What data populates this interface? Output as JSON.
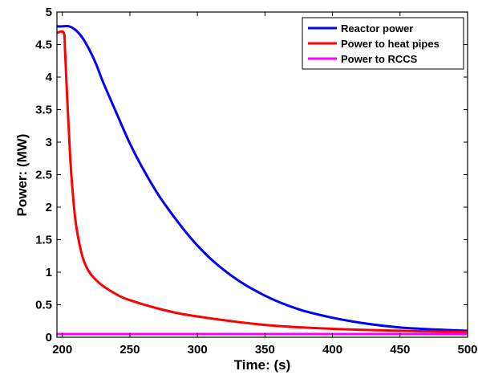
{
  "chart_data": {
    "type": "line",
    "title": "",
    "xlabel": "Time: (s)",
    "ylabel": "Power: (MW)",
    "xlim": [
      196,
      500
    ],
    "ylim": [
      0,
      5
    ],
    "xticks": [
      200,
      250,
      300,
      350,
      400,
      450,
      500
    ],
    "yticks": [
      0,
      0.5,
      1,
      1.5,
      2,
      2.5,
      3,
      3.5,
      4,
      4.5,
      5
    ],
    "ytick_labels": [
      "0",
      "0.5",
      "1",
      "1.5",
      "2",
      "2.5",
      "3",
      "3.5",
      "4",
      "4.5",
      "5"
    ],
    "grid": false,
    "legend_position": "top-right",
    "series": [
      {
        "name": "Reactor power",
        "color": "#0000ff",
        "x": [
          196,
          200,
          205,
          210,
          215,
          220,
          225,
          230,
          240,
          250,
          260,
          275,
          300,
          325,
          350,
          375,
          400,
          425,
          450,
          475,
          500
        ],
        "y": [
          4.78,
          4.78,
          4.78,
          4.72,
          4.6,
          4.42,
          4.2,
          3.93,
          3.45,
          2.98,
          2.58,
          2.07,
          1.41,
          0.95,
          0.64,
          0.43,
          0.3,
          0.21,
          0.15,
          0.12,
          0.1
        ]
      },
      {
        "name": "Power to heat pipes",
        "color": "#ff0000",
        "x": [
          196,
          201,
          202,
          204,
          206,
          208,
          210,
          213,
          216,
          220,
          225,
          230,
          240,
          250,
          275,
          300,
          350,
          400,
          450,
          500
        ],
        "y": [
          4.68,
          4.68,
          4.4,
          3.5,
          2.7,
          2.15,
          1.75,
          1.4,
          1.17,
          1.0,
          0.88,
          0.79,
          0.66,
          0.57,
          0.42,
          0.32,
          0.19,
          0.13,
          0.1,
          0.08
        ]
      },
      {
        "name": "Power to RCCS",
        "color": "#ff00ff",
        "x": [
          196,
          500
        ],
        "y": [
          0.05,
          0.05
        ]
      }
    ]
  }
}
